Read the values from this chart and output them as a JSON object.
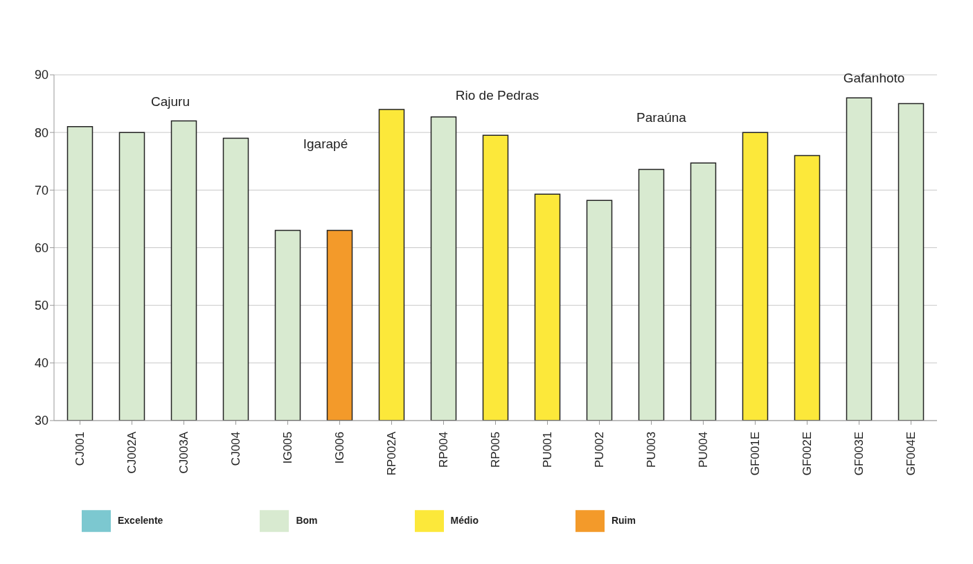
{
  "chart_data": {
    "type": "bar",
    "stacked": true,
    "categories": [
      "CJ001",
      "CJ002A",
      "CJ003A",
      "CJ004",
      "IG005",
      "IG006",
      "RP002A",
      "RP004",
      "RP005",
      "PU001",
      "PU002",
      "PU003",
      "PU004",
      "GF001E",
      "GF002E",
      "GF003E",
      "GF004E"
    ],
    "series": [
      {
        "name": "Excelente",
        "color": "#7cc8d0",
        "values": [
          null,
          null,
          null,
          null,
          null,
          null,
          null,
          null,
          null,
          null,
          null,
          null,
          null,
          null,
          null,
          null,
          null
        ]
      },
      {
        "name": "Bom",
        "color": "#d8ead0",
        "values": [
          81,
          80,
          82,
          79,
          63,
          null,
          null,
          82.7,
          null,
          null,
          68.2,
          73.6,
          74.7,
          null,
          null,
          86,
          85
        ]
      },
      {
        "name": "Médio",
        "color": "#fce83a",
        "values": [
          null,
          null,
          null,
          null,
          null,
          null,
          84,
          null,
          79.5,
          69.3,
          null,
          null,
          null,
          80,
          76,
          null,
          null
        ]
      },
      {
        "name": "Ruim",
        "color": "#f39a2a",
        "values": [
          null,
          null,
          null,
          null,
          null,
          63,
          null,
          null,
          null,
          null,
          null,
          null,
          null,
          null,
          null,
          null,
          null
        ]
      }
    ],
    "ylim": [
      30,
      90
    ],
    "yticks": [
      30,
      40,
      50,
      60,
      70,
      80,
      90
    ],
    "grid": "y",
    "legend": "bottom",
    "annotations": [
      "Cajuru",
      "Igarapé",
      "Rio de Pedras",
      "Paraúna",
      "Gafanhoto"
    ]
  }
}
